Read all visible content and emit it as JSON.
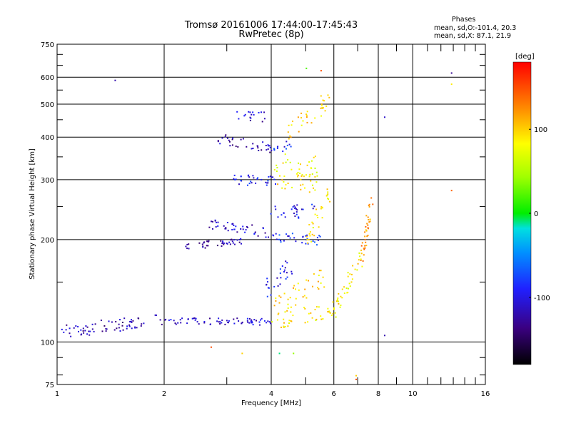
{
  "header": {
    "title_line1": "Tromsø 20161006 17:44:00-17:45:43",
    "title_line2": "RwPretec (8p)"
  },
  "phases": {
    "heading": "Phases",
    "line_o": "mean, sd,O:-101.4, 20.3",
    "line_x": "mean, sd,X:  87.1, 21.9"
  },
  "chart_data": {
    "type": "scatter",
    "xlabel": "Frequency [MHz]",
    "ylabel": "Stationary phase Virtual Height [km]",
    "x_scale": "log",
    "y_scale": "log",
    "xlim": [
      1,
      16
    ],
    "ylim": [
      75,
      750
    ],
    "x_ticks": [
      1,
      2,
      4,
      6,
      8,
      10,
      16
    ],
    "x_tick_labels": [
      "1",
      "2",
      "4",
      "6",
      "8",
      "10",
      "16"
    ],
    "y_ticks": [
      75,
      100,
      200,
      300,
      400,
      500,
      600,
      750
    ],
    "y_tick_labels": [
      "75",
      "100",
      "200",
      "300",
      "400",
      "500",
      "600",
      "750"
    ],
    "grid": true,
    "colorbar": {
      "label": "[deg]",
      "range": [
        -180,
        180
      ],
      "tick_values": [
        100,
        0,
        -100
      ],
      "tick_labels": [
        "100",
        "0",
        "-100"
      ]
    },
    "traces": [
      {
        "start": [
          1.0,
          108
        ],
        "end": [
          2.0,
          116
        ],
        "phase": -120,
        "scatter": 0.04
      },
      {
        "start": [
          2.0,
          116
        ],
        "end": [
          4.0,
          115
        ],
        "phase": -110,
        "scatter": 0.02
      },
      {
        "start": [
          4.0,
          115
        ],
        "end": [
          6.0,
          125
        ],
        "phase": 90,
        "scatter": 0.05
      },
      {
        "start": [
          6.0,
          125
        ],
        "end": [
          7.2,
          180
        ],
        "phase": 90,
        "scatter": 0.05
      },
      {
        "start": [
          7.2,
          180
        ],
        "end": [
          7.6,
          260
        ],
        "phase": 120,
        "scatter": 0.04
      },
      {
        "start": [
          4.0,
          125
        ],
        "end": [
          5.6,
          155
        ],
        "phase": 100,
        "scatter": 0.06
      },
      {
        "start": [
          3.8,
          140
        ],
        "end": [
          4.6,
          170
        ],
        "phase": -95,
        "scatter": 0.06
      },
      {
        "start": [
          2.2,
          190
        ],
        "end": [
          3.3,
          200
        ],
        "phase": -120,
        "scatter": 0.02
      },
      {
        "start": [
          2.6,
          225
        ],
        "end": [
          4.0,
          210
        ],
        "phase": -110,
        "scatter": 0.03
      },
      {
        "start": [
          4.0,
          205
        ],
        "end": [
          5.5,
          200
        ],
        "phase": -85,
        "scatter": 0.03
      },
      {
        "start": [
          4.0,
          240
        ],
        "end": [
          5.3,
          245
        ],
        "phase": -100,
        "scatter": 0.04
      },
      {
        "start": [
          5.0,
          200
        ],
        "end": [
          5.8,
          270
        ],
        "phase": 90,
        "scatter": 0.05
      },
      {
        "start": [
          3.0,
          300
        ],
        "end": [
          4.2,
          300
        ],
        "phase": -95,
        "scatter": 0.03
      },
      {
        "start": [
          4.2,
          300
        ],
        "end": [
          5.5,
          290
        ],
        "phase": 90,
        "scatter": 0.05
      },
      {
        "start": [
          2.8,
          400
        ],
        "end": [
          4.0,
          370
        ],
        "phase": -120,
        "scatter": 0.03
      },
      {
        "start": [
          4.0,
          370
        ],
        "end": [
          4.6,
          385
        ],
        "phase": -90,
        "scatter": 0.03
      },
      {
        "start": [
          4.0,
          340
        ],
        "end": [
          5.4,
          330
        ],
        "phase": 80,
        "scatter": 0.06
      },
      {
        "start": [
          4.4,
          420
        ],
        "end": [
          5.8,
          520
        ],
        "phase": 100,
        "scatter": 0.06
      },
      {
        "start": [
          3.2,
          470
        ],
        "end": [
          3.8,
          460
        ],
        "phase": -110,
        "scatter": 0.03
      }
    ],
    "isolated_points": [
      {
        "f": 1.45,
        "h": 590,
        "phase": -120
      },
      {
        "f": 12.8,
        "h": 620,
        "phase": -130
      },
      {
        "f": 12.8,
        "h": 575,
        "phase": 90
      },
      {
        "f": 12.8,
        "h": 280,
        "phase": 140
      },
      {
        "f": 8.3,
        "h": 460,
        "phase": -110
      },
      {
        "f": 8.3,
        "h": 105,
        "phase": -120
      },
      {
        "f": 2.7,
        "h": 97,
        "phase": 150
      },
      {
        "f": 3.3,
        "h": 93,
        "phase": 100
      },
      {
        "f": 4.6,
        "h": 93,
        "phase": 40
      },
      {
        "f": 4.2,
        "h": 93,
        "phase": -10
      },
      {
        "f": 6.9,
        "h": 80,
        "phase": 100
      },
      {
        "f": 6.9,
        "h": 78,
        "phase": 150
      },
      {
        "f": 5.0,
        "h": 640,
        "phase": 20
      },
      {
        "f": 5.5,
        "h": 630,
        "phase": 150
      }
    ]
  }
}
